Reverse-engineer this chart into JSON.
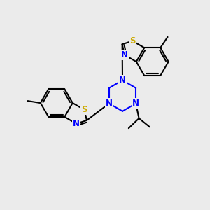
{
  "bg_color": "#ebebeb",
  "bond_color": "#000000",
  "N_color": "#0000ff",
  "S_color": "#ccaa00",
  "line_width": 1.5,
  "font_size_atom": 8.5,
  "fig_width": 3.0,
  "fig_height": 3.0,
  "xlim": [
    0,
    10
  ],
  "ylim": [
    0,
    10
  ]
}
